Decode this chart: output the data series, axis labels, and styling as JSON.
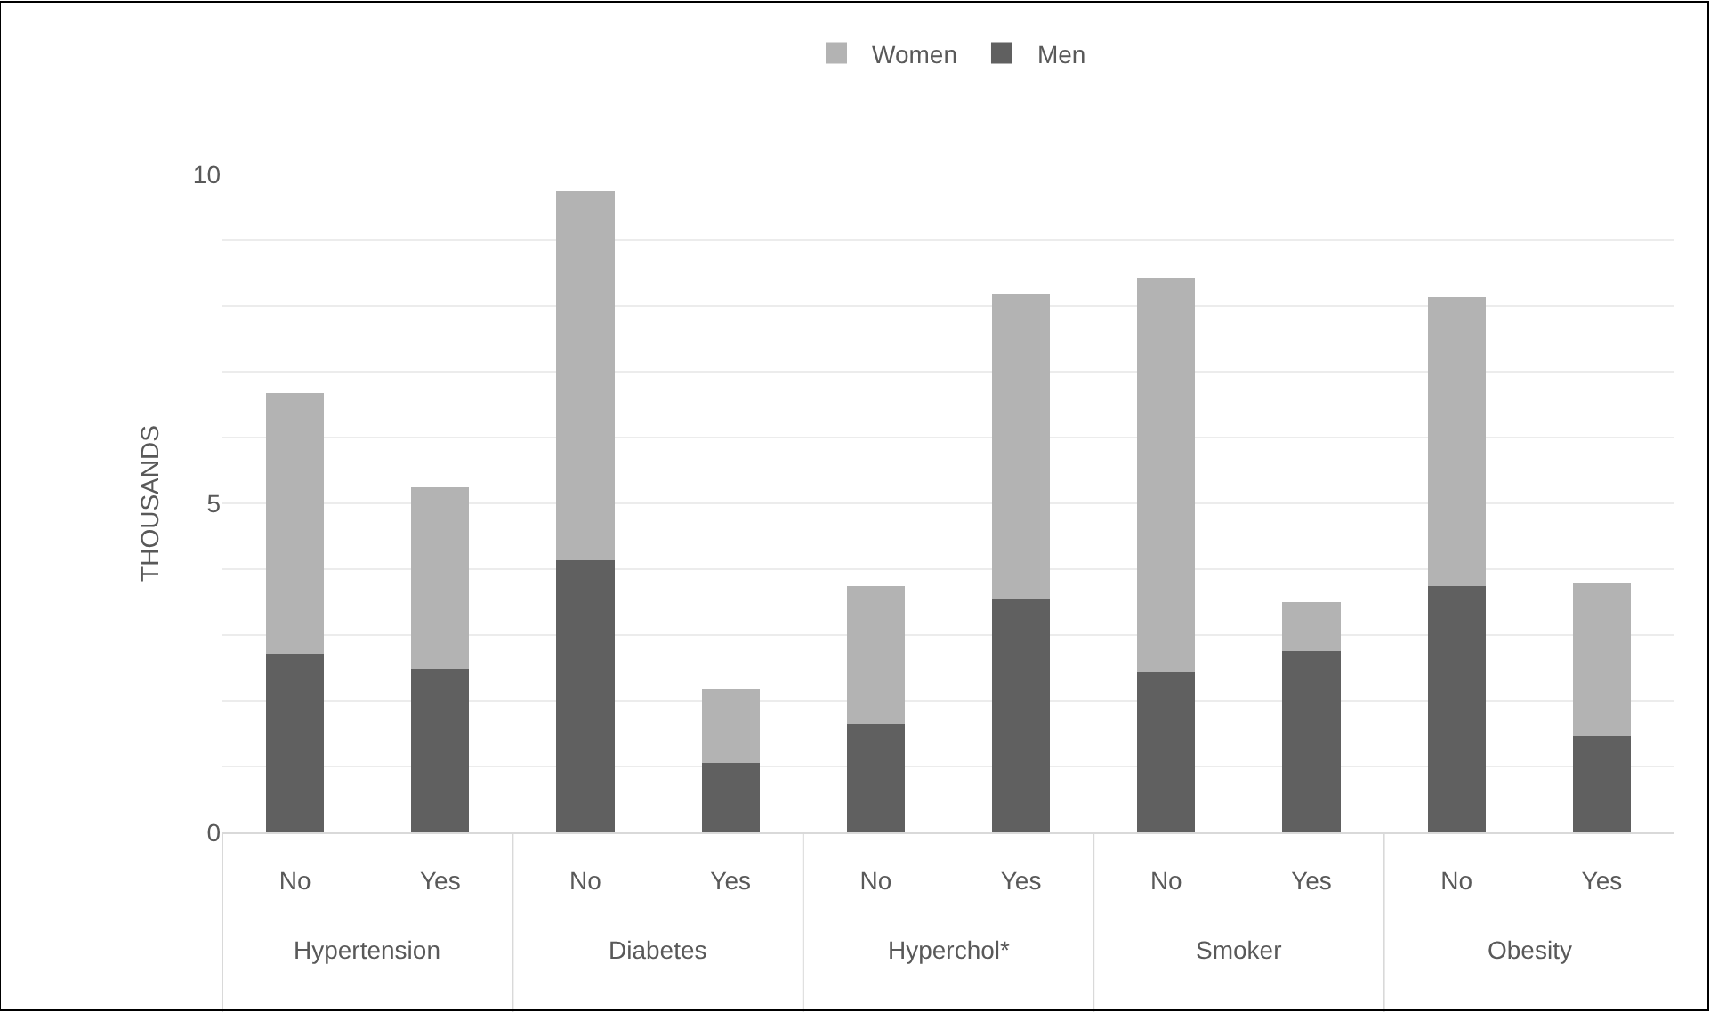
{
  "chart_data": {
    "type": "bar",
    "stacked": true,
    "ylabel": "THOUSANDS",
    "categories": [
      "No",
      "Yes",
      "No",
      "Yes",
      "No",
      "Yes",
      "No",
      "Yes",
      "No",
      "Yes"
    ],
    "series": [
      {
        "name": "Men",
        "color": "#606060",
        "values": [
          2.71,
          2.49,
          4.13,
          1.06,
          1.65,
          3.54,
          2.43,
          2.76,
          3.74,
          1.46
        ]
      },
      {
        "name": "Women",
        "color": "#b3b3b3",
        "values": [
          3.97,
          2.75,
          5.62,
          1.12,
          2.1,
          4.63,
          5.99,
          0.74,
          4.39,
          2.32
        ]
      }
    ],
    "annotations": [
      "Hypertension",
      "Diabetes",
      "Hyperchol*",
      "Smoker",
      "Obesity"
    ],
    "ylim": [
      0,
      10
    ],
    "yticks": [
      0,
      {
        "value": 1,
        "label": null
      },
      {
        "value": 2,
        "label": null
      },
      {
        "value": 3,
        "label": null
      },
      {
        "value": 4,
        "label": null
      },
      5,
      {
        "value": 6,
        "label": null
      },
      {
        "value": 7,
        "label": null
      },
      {
        "value": 8,
        "label": null
      },
      {
        "value": 9,
        "label": null
      },
      10
    ],
    "grid": "y",
    "legend": "top"
  }
}
